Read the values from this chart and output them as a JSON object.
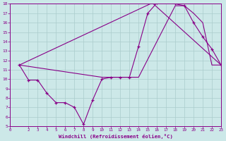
{
  "background_color": "#cce8e8",
  "grid_color": "#aacccc",
  "line_color": "#880088",
  "xlabel": "Windchill (Refroidissement éolien,°C)",
  "xlim": [
    0,
    23
  ],
  "ylim": [
    5,
    18
  ],
  "yticks": [
    5,
    6,
    7,
    8,
    9,
    10,
    11,
    12,
    13,
    14,
    15,
    16,
    17,
    18
  ],
  "xticks": [
    0,
    2,
    3,
    4,
    5,
    6,
    7,
    8,
    9,
    10,
    11,
    12,
    13,
    14,
    15,
    16,
    17,
    18,
    19,
    20,
    21,
    22,
    23
  ],
  "line1_x": [
    1,
    2,
    3,
    4,
    5,
    6,
    7,
    8,
    9,
    10,
    11,
    12,
    13,
    14,
    15,
    16,
    17,
    18,
    19,
    20,
    21,
    22,
    23
  ],
  "line1_y": [
    11.5,
    9.9,
    9.9,
    8.5,
    7.5,
    7.5,
    7.0,
    5.2,
    7.8,
    10.0,
    10.2,
    10.2,
    10.2,
    13.5,
    17.0,
    18.1,
    18.2,
    18.0,
    17.8,
    16.0,
    14.5,
    13.2,
    11.5
  ],
  "line2_x": [
    1,
    15.5,
    23
  ],
  "line2_y": [
    11.5,
    18.1,
    11.5
  ],
  "line3_x": [
    1,
    10,
    11,
    12,
    13,
    14,
    18,
    19,
    20,
    21,
    22,
    23
  ],
  "line3_y": [
    11.5,
    10.2,
    10.2,
    10.2,
    10.2,
    10.2,
    17.8,
    17.8,
    17.0,
    16.0,
    11.5,
    11.5
  ]
}
